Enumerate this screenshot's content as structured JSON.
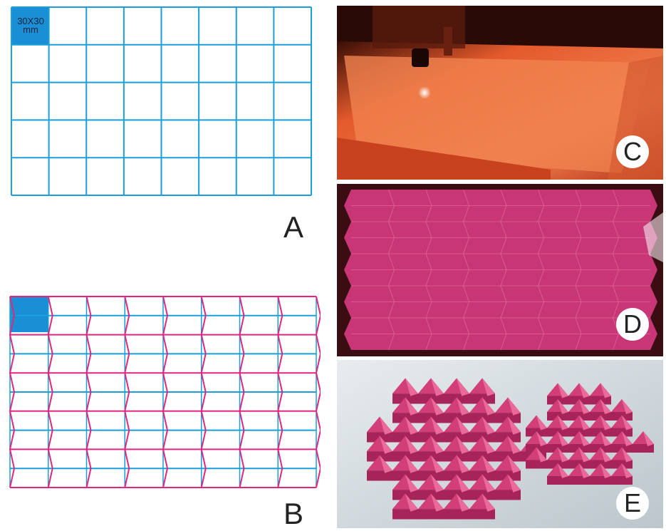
{
  "panels": {
    "A": {
      "label": "A",
      "cell_size_label_line1": "30X30",
      "cell_size_label_line2": "mm",
      "grid": {
        "cols": 8,
        "rows": 5
      }
    },
    "B": {
      "label": "B",
      "grid": {
        "cols": 8,
        "rows": 5
      }
    },
    "C": {
      "label": "C"
    },
    "D": {
      "label": "D"
    },
    "E": {
      "label": "E"
    }
  },
  "colors": {
    "grid_line": "#1a9fdb",
    "highlight_cell": "#1b8fd6",
    "fold_line": "#e0267f",
    "paper_pink": "#c93676",
    "laser_orange": "#e8552a"
  }
}
